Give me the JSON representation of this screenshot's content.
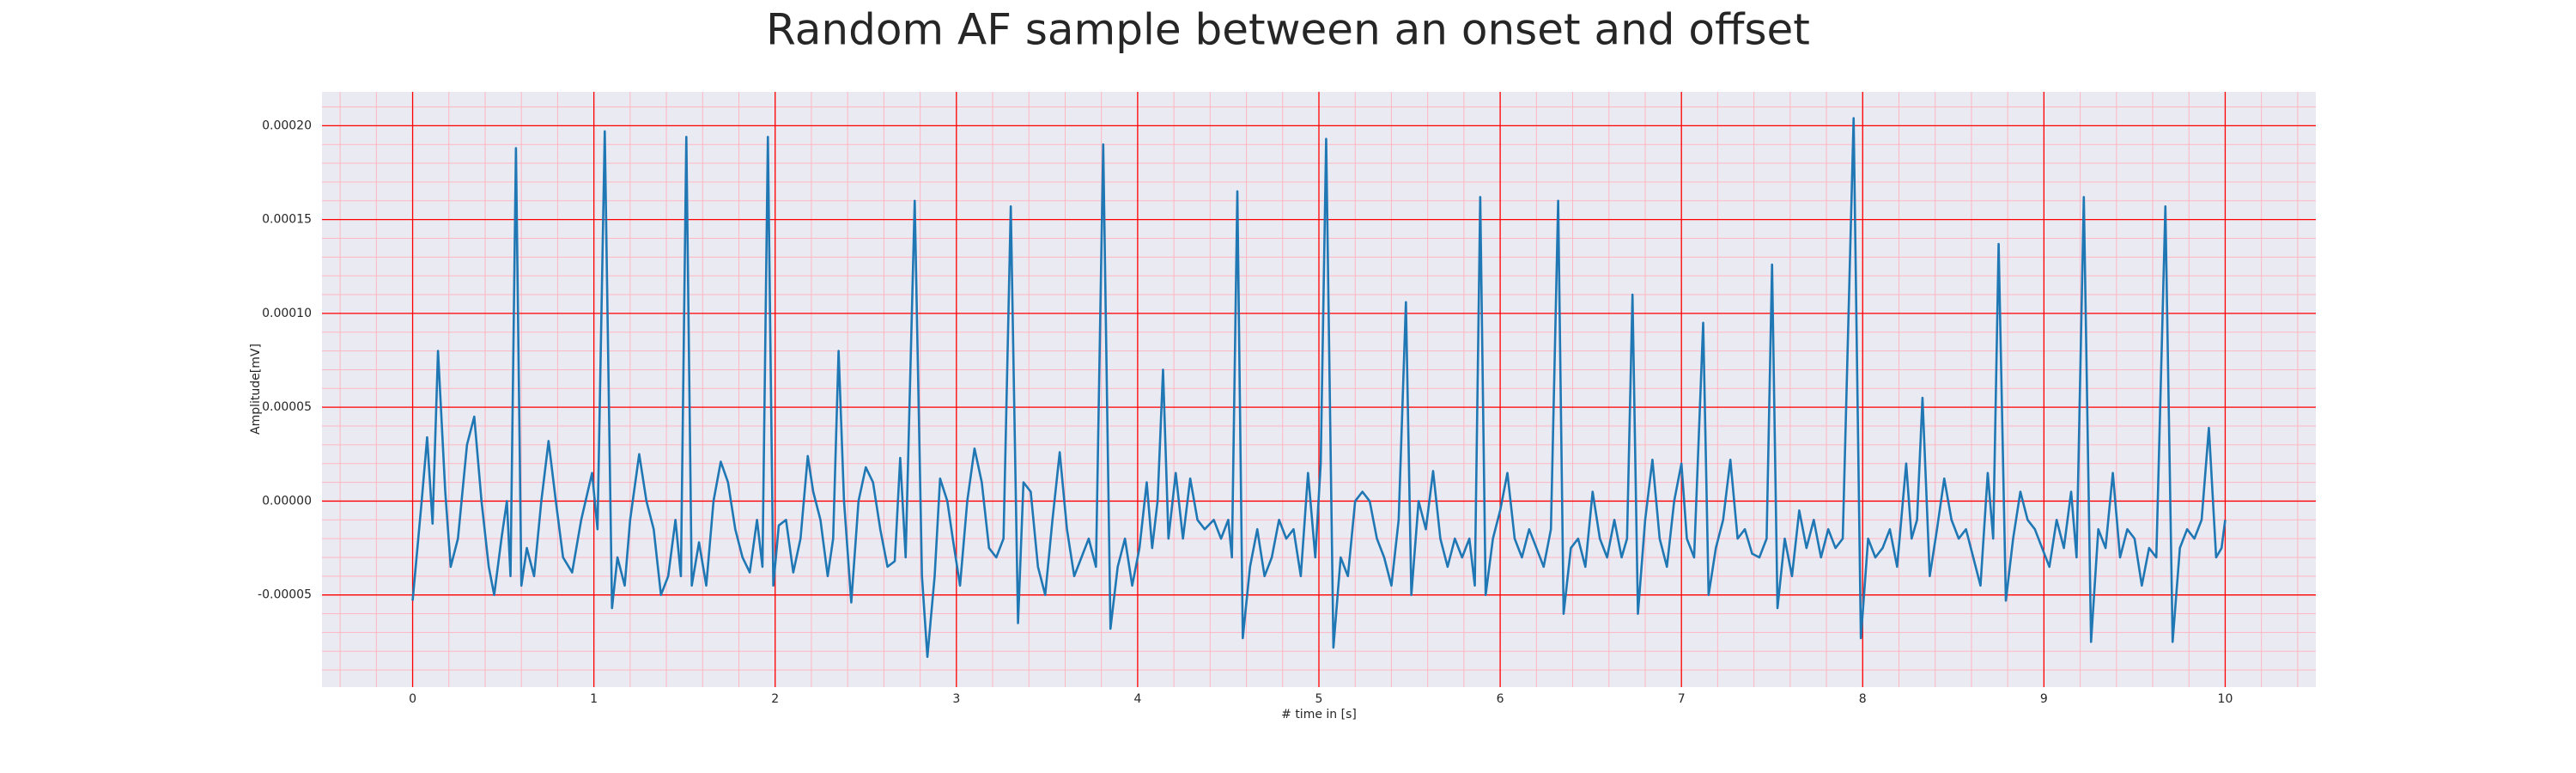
{
  "chart_data": {
    "type": "line",
    "title": "Random AF sample between an onset and offset",
    "xlabel": "# time in [s]",
    "ylabel": "Amplitude[mV]",
    "color": "#1f77b4",
    "background": "#eaeaf2",
    "grid": true,
    "grid_color": "#ff0000",
    "minor_grid": true,
    "minor_grid_color": "#ffb6c1",
    "xminor": 0.2,
    "yminor": 1e-05,
    "xlim": [
      -0.5,
      10.5
    ],
    "ylim": [
      -9.91e-05,
      0.000218
    ],
    "xticks": [
      0,
      1,
      2,
      3,
      4,
      5,
      6,
      7,
      8,
      9,
      10
    ],
    "yticks": [
      {
        "value": -5e-05,
        "label": "-0.00005"
      },
      {
        "value": 0,
        "label": "0.00000"
      },
      {
        "value": 5e-05,
        "label": "0.00005"
      },
      {
        "value": 0.0001,
        "label": "0.00010"
      },
      {
        "value": 0.00015,
        "label": "0.00015"
      },
      {
        "value": 0.0002,
        "label": "0.00020"
      }
    ],
    "x": [
      0.0,
      0.05,
      0.08,
      0.11,
      0.14,
      0.18,
      0.21,
      0.25,
      0.3,
      0.34,
      0.38,
      0.42,
      0.45,
      0.49,
      0.52,
      0.54,
      0.57,
      0.6,
      0.63,
      0.67,
      0.71,
      0.75,
      0.79,
      0.83,
      0.88,
      0.93,
      0.99,
      1.02,
      1.06,
      1.1,
      1.13,
      1.17,
      1.2,
      1.25,
      1.29,
      1.33,
      1.37,
      1.41,
      1.45,
      1.48,
      1.51,
      1.54,
      1.58,
      1.62,
      1.66,
      1.7,
      1.74,
      1.78,
      1.82,
      1.86,
      1.9,
      1.93,
      1.96,
      1.99,
      2.02,
      2.06,
      2.1,
      2.14,
      2.18,
      2.21,
      2.25,
      2.29,
      2.32,
      2.35,
      2.38,
      2.42,
      2.46,
      2.5,
      2.54,
      2.58,
      2.62,
      2.66,
      2.69,
      2.72,
      2.77,
      2.81,
      2.84,
      2.88,
      2.91,
      2.95,
      2.98,
      3.02,
      3.06,
      3.1,
      3.14,
      3.18,
      3.22,
      3.26,
      3.3,
      3.34,
      3.37,
      3.41,
      3.45,
      3.49,
      3.53,
      3.57,
      3.61,
      3.65,
      3.69,
      3.73,
      3.77,
      3.81,
      3.85,
      3.89,
      3.93,
      3.97,
      4.01,
      4.05,
      4.08,
      4.11,
      4.14,
      4.17,
      4.21,
      4.25,
      4.29,
      4.33,
      4.37,
      4.42,
      4.46,
      4.5,
      4.52,
      4.55,
      4.58,
      4.62,
      4.66,
      4.7,
      4.74,
      4.78,
      4.82,
      4.86,
      4.9,
      4.94,
      4.98,
      5.01,
      5.04,
      5.08,
      5.12,
      5.16,
      5.2,
      5.24,
      5.28,
      5.32,
      5.36,
      5.4,
      5.44,
      5.48,
      5.51,
      5.55,
      5.59,
      5.63,
      5.67,
      5.71,
      5.75,
      5.79,
      5.83,
      5.86,
      5.89,
      5.92,
      5.96,
      6.0,
      6.04,
      6.08,
      6.12,
      6.16,
      6.2,
      6.24,
      6.28,
      6.32,
      6.35,
      6.39,
      6.43,
      6.47,
      6.51,
      6.55,
      6.59,
      6.63,
      6.67,
      6.7,
      6.73,
      6.76,
      6.8,
      6.84,
      6.88,
      6.92,
      6.96,
      7.0,
      7.03,
      7.07,
      7.12,
      7.15,
      7.19,
      7.23,
      7.27,
      7.31,
      7.35,
      7.39,
      7.43,
      7.47,
      7.5,
      7.53,
      7.57,
      7.61,
      7.65,
      7.69,
      7.73,
      7.77,
      7.81,
      7.85,
      7.89,
      7.95,
      7.99,
      8.03,
      8.07,
      8.11,
      8.15,
      8.19,
      8.24,
      8.27,
      8.3,
      8.33,
      8.37,
      8.41,
      8.45,
      8.49,
      8.53,
      8.57,
      8.61,
      8.65,
      8.69,
      8.72,
      8.75,
      8.79,
      8.83,
      8.87,
      8.91,
      8.95,
      8.99,
      9.03,
      9.07,
      9.11,
      9.15,
      9.18,
      9.22,
      9.26,
      9.3,
      9.34,
      9.38,
      9.42,
      9.46,
      9.5,
      9.54,
      9.58,
      9.62,
      9.67,
      9.71,
      9.75,
      9.79,
      9.83,
      9.87,
      9.91,
      9.95,
      9.98,
      10.0
    ],
    "values": [
      -5.3e-05,
      0,
      3.4e-05,
      -1.2e-05,
      8e-05,
      5e-06,
      -3.5e-05,
      -2e-05,
      3e-05,
      4.5e-05,
      0,
      -3.5e-05,
      -5e-05,
      -2e-05,
      0,
      -4e-05,
      0.000188,
      -4.5e-05,
      -2.5e-05,
      -4e-05,
      0,
      3.2e-05,
      0,
      -3e-05,
      -3.8e-05,
      -1e-05,
      1.5e-05,
      -1.5e-05,
      0.000197,
      -5.7e-05,
      -3e-05,
      -4.5e-05,
      -1e-05,
      2.5e-05,
      0,
      -1.5e-05,
      -5e-05,
      -4e-05,
      -1e-05,
      -4e-05,
      0.000194,
      -4.5e-05,
      -2.2e-05,
      -4.5e-05,
      0,
      2.1e-05,
      1e-05,
      -1.5e-05,
      -3e-05,
      -3.8e-05,
      -1e-05,
      -3.5e-05,
      0.000194,
      -4.5e-05,
      -1.3e-05,
      -1e-05,
      -3.8e-05,
      -2e-05,
      2.4e-05,
      5e-06,
      -1e-05,
      -4e-05,
      -2e-05,
      8e-05,
      0,
      -5.4e-05,
      0,
      1.8e-05,
      1e-05,
      -1.5e-05,
      -3.5e-05,
      -3.2e-05,
      2.3e-05,
      -3e-05,
      0.00016,
      -4e-05,
      -8.3e-05,
      -4e-05,
      1.2e-05,
      0,
      -2e-05,
      -4.5e-05,
      0,
      2.8e-05,
      1e-05,
      -2.5e-05,
      -3e-05,
      -2e-05,
      0.000157,
      -6.5e-05,
      1e-05,
      5e-06,
      -3.5e-05,
      -5e-05,
      -1e-05,
      2.6e-05,
      -1.5e-05,
      -4e-05,
      -3e-05,
      -2e-05,
      -3.5e-05,
      0.00019,
      -6.8e-05,
      -3.5e-05,
      -2e-05,
      -4.5e-05,
      -2.5e-05,
      1e-05,
      -2.5e-05,
      0,
      7e-05,
      -2e-05,
      1.5e-05,
      -2e-05,
      1.2e-05,
      -1e-05,
      -1.5e-05,
      -1e-05,
      -2e-05,
      -1e-05,
      -3e-05,
      0.000165,
      -7.3e-05,
      -3.5e-05,
      -1.5e-05,
      -4e-05,
      -3e-05,
      -1e-05,
      -2e-05,
      -1.5e-05,
      -4e-05,
      1.5e-05,
      -3e-05,
      2e-05,
      0.000193,
      -7.8e-05,
      -3e-05,
      -4e-05,
      0,
      5e-06,
      0,
      -2e-05,
      -3e-05,
      -4.5e-05,
      -1e-05,
      0.000106,
      -5e-05,
      0,
      -1.5e-05,
      1.6e-05,
      -2e-05,
      -3.5e-05,
      -2e-05,
      -3e-05,
      -2e-05,
      -4.5e-05,
      0.000162,
      -5e-05,
      -2e-05,
      -5e-06,
      1.5e-05,
      -2e-05,
      -3e-05,
      -1.5e-05,
      -2.5e-05,
      -3.5e-05,
      -1.5e-05,
      0.00016,
      -6e-05,
      -2.5e-05,
      -2e-05,
      -3.5e-05,
      5e-06,
      -2e-05,
      -3e-05,
      -1e-05,
      -3e-05,
      -2e-05,
      0.00011,
      -6e-05,
      -1e-05,
      2.2e-05,
      -2e-05,
      -3.5e-05,
      0,
      2e-05,
      -2e-05,
      -3e-05,
      9.5e-05,
      -5e-05,
      -2.5e-05,
      -1e-05,
      2.2e-05,
      -2e-05,
      -1.5e-05,
      -2.8e-05,
      -3e-05,
      -2e-05,
      0.000126,
      -5.7e-05,
      -2e-05,
      -4e-05,
      -5e-06,
      -2.5e-05,
      -1e-05,
      -3e-05,
      -1.5e-05,
      -2.5e-05,
      -2e-05,
      0.000204,
      -7.3e-05,
      -2e-05,
      -3e-05,
      -2.5e-05,
      -1.5e-05,
      -3.5e-05,
      2e-05,
      -2e-05,
      -1e-05,
      5.5e-05,
      -4e-05,
      -1.5e-05,
      1.2e-05,
      -1e-05,
      -2e-05,
      -1.5e-05,
      -3e-05,
      -4.5e-05,
      1.5e-05,
      -2e-05,
      0.000137,
      -5.3e-05,
      -2e-05,
      5e-06,
      -1e-05,
      -1.5e-05,
      -2.5e-05,
      -3.5e-05,
      -1e-05,
      -2.5e-05,
      5e-06,
      -3e-05,
      0.000162,
      -7.5e-05,
      -1.5e-05,
      -2.5e-05,
      1.5e-05,
      -3e-05,
      -1.5e-05,
      -2e-05,
      -4.5e-05,
      -2.5e-05,
      -3e-05,
      0.000157,
      -7.5e-05,
      -2.5e-05,
      -1.5e-05,
      -2e-05,
      -1e-05,
      3.9e-05,
      -3e-05,
      -2.5e-05,
      -1e-05
    ]
  }
}
